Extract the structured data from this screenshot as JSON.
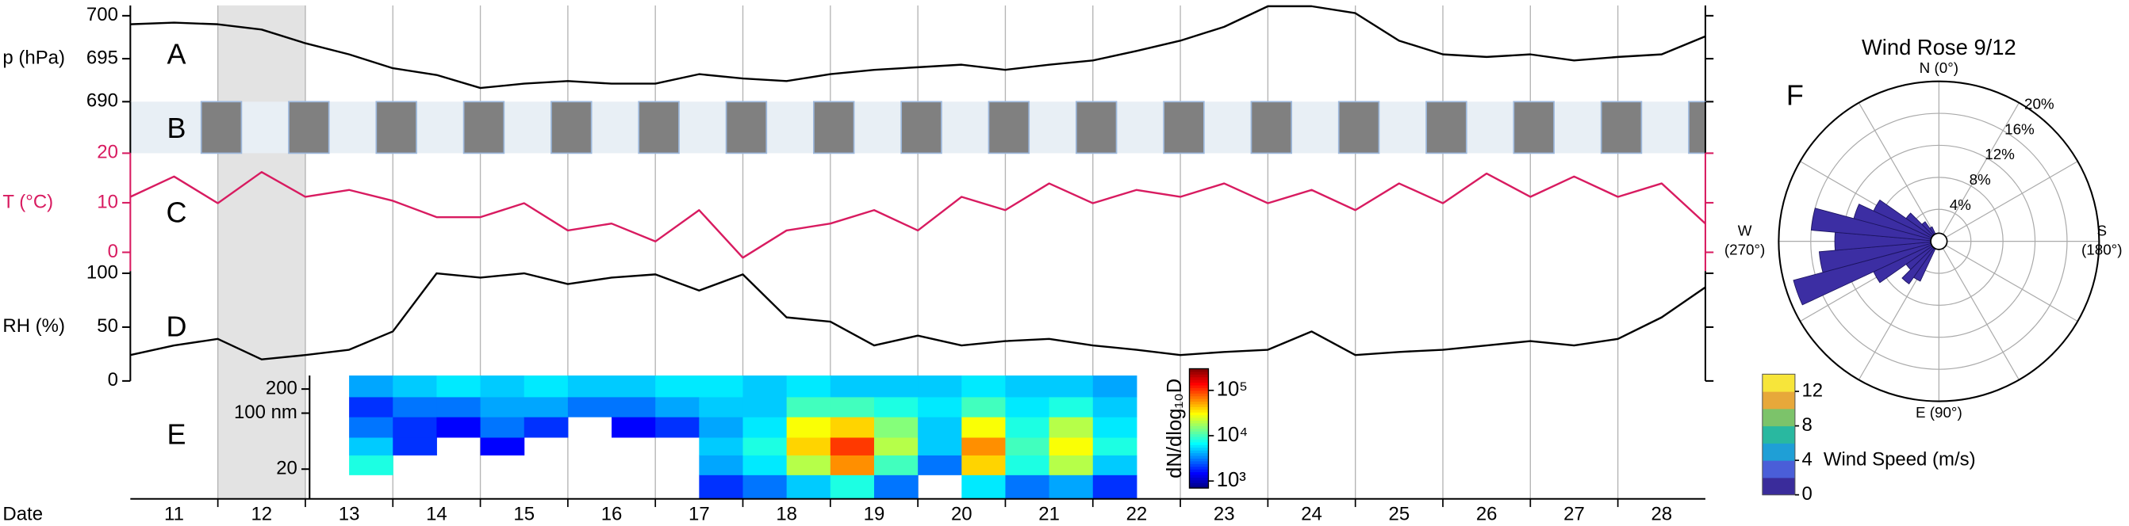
{
  "chart_data": [
    {
      "type": "line",
      "panel_label": "A",
      "ylabel": "p (hPa)",
      "xlim": [
        11,
        29
      ],
      "ylim": [
        690,
        701.2
      ],
      "yticks": [
        690,
        695,
        700
      ],
      "x": [
        11,
        11.5,
        12,
        12.5,
        13,
        13.5,
        14,
        14.5,
        15,
        15.5,
        16,
        16.5,
        17,
        17.5,
        18,
        18.5,
        19,
        19.5,
        20,
        20.5,
        21,
        21.5,
        22,
        22.5,
        23,
        23.5,
        24,
        24.5,
        25,
        25.5,
        26,
        26.5,
        27,
        27.5,
        28,
        28.5,
        29
      ],
      "series": [
        {
          "color": "#000000",
          "values": [
            699.0,
            699.2,
            699.0,
            698.4,
            696.8,
            695.5,
            693.9,
            693.1,
            691.6,
            692.1,
            692.4,
            692.1,
            692.1,
            693.2,
            692.7,
            692.4,
            693.2,
            693.7,
            694.0,
            694.3,
            693.7,
            694.3,
            694.8,
            695.9,
            697.1,
            698.7,
            701.1,
            701.1,
            700.3,
            697.1,
            695.5,
            695.2,
            695.5,
            694.8,
            695.2,
            695.5,
            697.6
          ]
        }
      ]
    },
    {
      "type": "bands",
      "panel_label": "B",
      "xlim": [
        11,
        29
      ],
      "color": "#808080",
      "edge_color": "#9db8dc",
      "background": "#e8eff5",
      "starts": [
        11.81,
        12.81,
        13.81,
        14.81,
        15.81,
        16.81,
        17.81,
        18.81,
        19.81,
        20.81,
        21.81,
        22.81,
        23.81,
        24.81,
        25.81,
        26.81,
        27.81,
        28.81
      ],
      "ends": [
        12.27,
        13.27,
        14.27,
        15.27,
        16.27,
        17.27,
        18.27,
        19.27,
        20.27,
        21.27,
        22.27,
        23.27,
        24.27,
        25.27,
        26.27,
        27.27,
        28.27,
        29
      ]
    },
    {
      "type": "line",
      "panel_label": "C",
      "ylabel": "T (°C)",
      "axis_color": "#d81b60",
      "xlim": [
        11,
        29
      ],
      "ylim": [
        -3.8,
        20
      ],
      "yticks": [
        0,
        10,
        20
      ],
      "x": [
        11,
        11.5,
        12,
        12.5,
        13,
        13.5,
        14,
        14.5,
        15,
        15.5,
        16,
        16.5,
        17,
        17.5,
        18,
        18.5,
        19,
        19.5,
        20,
        20.5,
        21,
        21.5,
        22,
        22.5,
        23,
        23.5,
        24,
        24.5,
        25,
        25.5,
        26,
        26.5,
        27,
        27.5,
        28,
        28.5,
        29
      ],
      "series": [
        {
          "color": "#d81b60",
          "values": [
            11.2,
            15.3,
            9.9,
            16.2,
            11.2,
            12.6,
            10.4,
            7.1,
            7.1,
            9.9,
            4.4,
            5.8,
            2.2,
            8.5,
            -1.1,
            4.4,
            5.8,
            8.5,
            4.4,
            11.2,
            8.5,
            13.9,
            9.9,
            12.6,
            11.2,
            13.9,
            9.9,
            12.6,
            8.5,
            13.9,
            9.9,
            15.9,
            11.2,
            15.3,
            11.2,
            13.9,
            5.8
          ]
        }
      ]
    },
    {
      "type": "line",
      "panel_label": "D",
      "ylabel": "RH (%)",
      "xlim": [
        11,
        29
      ],
      "ylim": [
        0,
        102
      ],
      "yticks": [
        0,
        50,
        100
      ],
      "x": [
        11,
        11.5,
        12,
        12.5,
        13,
        13.5,
        14,
        14.5,
        15,
        15.5,
        16,
        16.5,
        17,
        17.5,
        18,
        18.5,
        19,
        19.5,
        20,
        20.5,
        21,
        21.5,
        22,
        22.5,
        23,
        23.5,
        24,
        24.5,
        25,
        25.5,
        26,
        26.5,
        27,
        27.5,
        28,
        28.5,
        29
      ],
      "series": [
        {
          "color": "#000000",
          "values": [
            24,
            33,
            39,
            20,
            24,
            29,
            46,
            100,
            96,
            100,
            90,
            96,
            99,
            84,
            99,
            59,
            55,
            33,
            42,
            33,
            37,
            39,
            33,
            29,
            24,
            27,
            29,
            46,
            24,
            27,
            29,
            33,
            37,
            33,
            39,
            59,
            87
          ]
        }
      ]
    },
    {
      "type": "heatmap",
      "panel_label": "E",
      "xlim": [
        11,
        29
      ],
      "log_y": true,
      "ylim": [
        8.5,
        295
      ],
      "yticks": [
        20,
        {
          "value": 100,
          "label": "100 nm"
        },
        200
      ],
      "x_edges": [
        13.5,
        14,
        14.5,
        15,
        15.5,
        16,
        16.5,
        17,
        17.5,
        18,
        18.5,
        19,
        19.5,
        20,
        20.5,
        21,
        21.5,
        22,
        22.5
      ],
      "y_edges": [
        8.5,
        17,
        30,
        50,
        90,
        160,
        295
      ],
      "z": [
        [
          null,
          8000,
          5000,
          3000,
          2000,
          4000
        ],
        [
          null,
          null,
          2000,
          2000,
          3000,
          5000
        ],
        [
          null,
          null,
          null,
          1500,
          3000,
          6000
        ],
        [
          null,
          null,
          1500,
          3000,
          4000,
          5000
        ],
        [
          null,
          null,
          null,
          2000,
          4000,
          6000
        ],
        [
          null,
          null,
          null,
          null,
          3000,
          5000
        ],
        [
          null,
          null,
          null,
          1500,
          3000,
          5000
        ],
        [
          null,
          null,
          null,
          2000,
          4000,
          6000
        ],
        [
          2000,
          4000,
          5000,
          4000,
          5000,
          6000
        ],
        [
          3000,
          6000,
          8000,
          6000,
          5000,
          5000
        ],
        [
          5000,
          20000,
          40000,
          30000,
          10000,
          6000
        ],
        [
          8000,
          60000,
          100000,
          40000,
          10000,
          5000
        ],
        [
          3000,
          10000,
          20000,
          15000,
          8000,
          5000
        ],
        [
          null,
          3000,
          5000,
          5000,
          6000,
          5000
        ],
        [
          6000,
          40000,
          60000,
          30000,
          10000,
          6000
        ],
        [
          3000,
          8000,
          10000,
          8000,
          6000,
          5000
        ],
        [
          4000,
          20000,
          30000,
          20000,
          8000,
          5000
        ],
        [
          2000,
          5000,
          8000,
          6000,
          5000,
          4000
        ]
      ],
      "zlim": [
        700,
        300000
      ],
      "zticks": [
        {
          "value": 1000,
          "label": "10³"
        },
        {
          "value": 10000,
          "label": "10⁴"
        },
        {
          "value": 100000,
          "label": "10⁵"
        }
      ],
      "zlabel": "dN/dlog₁₀D"
    },
    {
      "type": "windrose",
      "panel_label": "F",
      "title": "Wind Rose 9/12",
      "color": "#3c2ea3",
      "compass": {
        "north": "N (0°)",
        "west": [
          "W",
          "(270°)"
        ],
        "south": [
          "S",
          "(180°)"
        ],
        "east": "E (90°)"
      },
      "rlim": [
        0,
        20
      ],
      "rticks": [
        {
          "value": 4,
          "label": "4%"
        },
        {
          "value": 8,
          "label": "8%"
        },
        {
          "value": 12,
          "label": "12%"
        },
        {
          "value": 16,
          "label": "16%"
        },
        {
          "value": 20,
          "label": "20%"
        }
      ],
      "directions": [
        210,
        220,
        230,
        240,
        250,
        260,
        270,
        280,
        290,
        300,
        310,
        320,
        330
      ],
      "values": [
        5.5,
        6.5,
        5,
        9,
        18.8,
        15,
        13,
        16,
        11,
        9,
        5,
        3,
        2
      ],
      "speed_label": "Wind Speed (m/s)",
      "speed_lim": [
        0,
        14
      ],
      "speed_ticks": [
        0,
        4,
        8,
        12
      ],
      "speed_colors": [
        "#3a2c9b",
        "#4a5ed8",
        "#1f9fd6",
        "#29b8a0",
        "#7cc36a",
        "#e7a83a",
        "#f7e53a"
      ]
    },
    {
      "type": "date-axis",
      "xlabel": "Date",
      "xlim": [
        11,
        29
      ],
      "highlight": [
        12,
        13
      ],
      "xgrid": [
        12,
        13,
        14,
        15,
        16,
        17,
        18,
        19,
        20,
        21,
        22,
        23,
        24,
        25,
        26,
        27,
        28
      ],
      "xticks": [
        {
          "value": 11.5,
          "label": "11"
        },
        {
          "value": 12.5,
          "label": "12"
        },
        {
          "value": 13.5,
          "label": "13"
        },
        {
          "value": 14.5,
          "label": "14"
        },
        {
          "value": 15.5,
          "label": "15"
        },
        {
          "value": 16.5,
          "label": "16"
        },
        {
          "value": 17.5,
          "label": "17"
        },
        {
          "value": 18.5,
          "label": "18"
        },
        {
          "value": 19.5,
          "label": "19"
        },
        {
          "value": 20.5,
          "label": "20"
        },
        {
          "value": 21.5,
          "label": "21"
        },
        {
          "value": 22.5,
          "label": "22"
        },
        {
          "value": 23.5,
          "label": "23"
        },
        {
          "value": 24.5,
          "label": "24"
        },
        {
          "value": 25.5,
          "label": "25"
        },
        {
          "value": 26.5,
          "label": "26"
        },
        {
          "value": 27.5,
          "label": "27"
        },
        {
          "value": 28.5,
          "label": "28"
        }
      ]
    }
  ]
}
